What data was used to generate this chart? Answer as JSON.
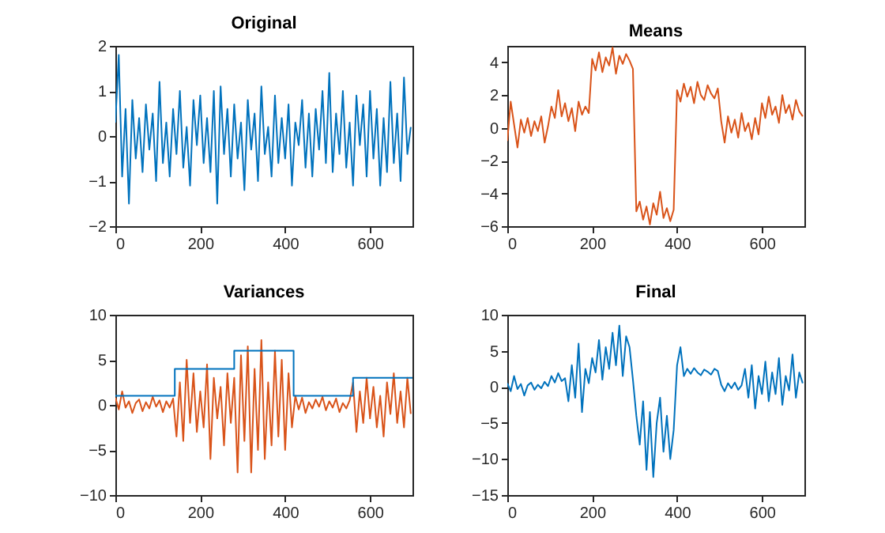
{
  "chart_data": [
    {
      "type": "line",
      "title": "Original",
      "x": [
        0,
        8,
        16,
        24,
        32,
        40,
        48,
        56,
        64,
        72,
        80,
        88,
        96,
        104,
        112,
        120,
        128,
        136,
        144,
        152,
        160,
        168,
        176,
        184,
        192,
        200,
        208,
        216,
        224,
        232,
        240,
        248,
        256,
        264,
        272,
        280,
        288,
        296,
        304,
        312,
        320,
        328,
        336,
        344,
        352,
        360,
        368,
        376,
        384,
        392,
        400,
        408,
        416,
        424,
        432,
        440,
        448,
        456,
        464,
        472,
        480,
        488,
        496,
        504,
        512,
        520,
        528,
        536,
        544,
        552,
        560,
        568,
        576,
        584,
        592,
        600,
        608,
        616,
        624,
        632,
        640,
        648,
        656,
        664,
        672,
        680,
        688,
        696
      ],
      "xlim": [
        0,
        700
      ],
      "xticks": [
        0,
        200,
        400,
        600
      ],
      "ylim": [
        -2,
        2
      ],
      "yticks": [
        -2,
        -1,
        0,
        1,
        2
      ],
      "series": [
        {
          "color": "#0072bd",
          "values": [
            0.3,
            1.8,
            -0.9,
            0.6,
            -1.5,
            0.8,
            -0.5,
            0.4,
            -0.8,
            0.7,
            -0.3,
            0.5,
            -1.0,
            1.2,
            -0.6,
            0.3,
            -0.9,
            0.6,
            -0.4,
            1.0,
            -0.7,
            0.2,
            -1.1,
            0.8,
            -0.2,
            0.9,
            -0.6,
            0.4,
            -0.8,
            1.0,
            -1.5,
            1.1,
            -0.4,
            0.6,
            -0.9,
            0.7,
            -0.5,
            0.3,
            -1.2,
            0.8,
            -0.3,
            0.5,
            -1.0,
            1.1,
            -0.4,
            0.2,
            -0.9,
            0.9,
            -0.6,
            0.4,
            -0.5,
            0.7,
            -1.1,
            0.3,
            -0.2,
            0.8,
            -0.7,
            0.5,
            -0.9,
            0.6,
            -0.3,
            1.0,
            -0.6,
            1.4,
            -0.8,
            0.5,
            -0.4,
            1.0,
            -0.7,
            0.3,
            -1.1,
            0.9,
            -0.2,
            0.7,
            -0.9,
            1.0,
            -0.5,
            0.6,
            -1.1,
            0.4,
            -0.8,
            1.2,
            -0.6,
            0.5,
            -1.0,
            1.3,
            -0.4,
            0.2
          ]
        }
      ]
    },
    {
      "type": "line",
      "title": "Means",
      "x": [
        0,
        8,
        16,
        24,
        32,
        40,
        48,
        56,
        64,
        72,
        80,
        88,
        96,
        104,
        112,
        120,
        128,
        136,
        144,
        152,
        160,
        168,
        176,
        184,
        192,
        200,
        208,
        216,
        224,
        232,
        240,
        248,
        256,
        264,
        272,
        280,
        288,
        296,
        304,
        312,
        320,
        328,
        336,
        344,
        352,
        360,
        368,
        376,
        384,
        392,
        400,
        408,
        416,
        424,
        432,
        440,
        448,
        456,
        464,
        472,
        480,
        488,
        496,
        504,
        512,
        520,
        528,
        536,
        544,
        552,
        560,
        568,
        576,
        584,
        592,
        600,
        608,
        616,
        624,
        632,
        640,
        648,
        656,
        664,
        672,
        680,
        688,
        696
      ],
      "xlim": [
        0,
        700
      ],
      "xticks": [
        0,
        200,
        400,
        600
      ],
      "ylim": [
        -6,
        5
      ],
      "yticks": [
        -6,
        -4,
        -2,
        0,
        2,
        4
      ],
      "series": [
        {
          "color": "#d95319",
          "values": [
            -0.8,
            1.6,
            0.2,
            -1.2,
            0.5,
            -0.3,
            0.6,
            -0.5,
            0.4,
            -0.2,
            0.7,
            -0.9,
            0.1,
            1.3,
            0.6,
            2.3,
            0.7,
            1.5,
            0.4,
            1.2,
            -0.2,
            1.6,
            0.8,
            1.3,
            0.9,
            4.2,
            3.5,
            4.6,
            3.4,
            4.3,
            3.8,
            4.9,
            3.3,
            4.4,
            3.9,
            4.5,
            4.1,
            3.6,
            -5.1,
            -4.5,
            -5.6,
            -4.8,
            -5.9,
            -4.6,
            -5.3,
            -3.9,
            -5.5,
            -4.9,
            -5.7,
            -5.0,
            2.3,
            1.6,
            2.7,
            1.9,
            2.5,
            1.5,
            2.8,
            2.0,
            1.7,
            2.6,
            2.1,
            1.8,
            2.4,
            0.4,
            -0.9,
            0.7,
            -0.3,
            0.5,
            -0.6,
            0.9,
            -0.2,
            0.3,
            -0.7,
            0.6,
            -0.4,
            1.5,
            0.6,
            1.9,
            0.8,
            1.3,
            0.3,
            2.0,
            0.9,
            1.4,
            0.5,
            1.7,
            1.0,
            0.7
          ]
        }
      ]
    },
    {
      "type": "line",
      "title": "Variances",
      "x": [
        0,
        8,
        16,
        24,
        32,
        40,
        48,
        56,
        64,
        72,
        80,
        88,
        96,
        104,
        112,
        120,
        128,
        136,
        144,
        152,
        160,
        168,
        176,
        184,
        192,
        200,
        208,
        216,
        224,
        232,
        240,
        248,
        256,
        264,
        272,
        280,
        288,
        296,
        304,
        312,
        320,
        328,
        336,
        344,
        352,
        360,
        368,
        376,
        384,
        392,
        400,
        408,
        416,
        424,
        432,
        440,
        448,
        456,
        464,
        472,
        480,
        488,
        496,
        504,
        512,
        520,
        528,
        536,
        544,
        552,
        560,
        568,
        576,
        584,
        592,
        600,
        608,
        616,
        624,
        632,
        640,
        648,
        656,
        664,
        672,
        680,
        688,
        696
      ],
      "xlim": [
        0,
        700
      ],
      "xticks": [
        0,
        200,
        400,
        600
      ],
      "ylim": [
        -10,
        10
      ],
      "yticks": [
        -10,
        -5,
        0,
        5,
        10
      ],
      "series": [
        {
          "color": "#d95319",
          "values": [
            0.8,
            -0.5,
            1.5,
            -0.3,
            0.4,
            -0.9,
            0.2,
            0.6,
            -0.7,
            0.3,
            -0.4,
            0.9,
            -0.2,
            0.5,
            -0.8,
            0.4,
            -0.3,
            0.7,
            -3.5,
            2.5,
            -4.0,
            5.0,
            -2.0,
            3.5,
            -3.0,
            1.5,
            -2.5,
            4.5,
            -6.0,
            3.0,
            -1.5,
            2.0,
            -4.5,
            3.5,
            -2.0,
            3.0,
            -7.5,
            5.5,
            -4.0,
            6.5,
            -7.5,
            4.0,
            -5.0,
            7.2,
            -6.0,
            2.5,
            -4.5,
            6.0,
            -3.5,
            5.0,
            -5.0,
            3.5,
            -2.5,
            1.0,
            -0.5,
            0.8,
            -0.9,
            0.3,
            -0.4,
            0.6,
            -0.2,
            0.9,
            -0.6,
            0.4,
            -0.3,
            0.7,
            -0.8,
            0.2,
            -0.4,
            0.5,
            2.5,
            -3.0,
            1.5,
            -2.0,
            3.0,
            -1.5,
            2.0,
            -2.5,
            1.0,
            -3.5,
            2.5,
            -1.0,
            3.5,
            -2.0,
            1.5,
            -2.5,
            3.0,
            -1.0
          ]
        },
        {
          "type": "step",
          "color": "#0072bd",
          "x": [
            0,
            140,
            280,
            420,
            560,
            700
          ],
          "values": [
            1,
            4,
            6,
            1,
            3,
            3
          ]
        }
      ]
    },
    {
      "type": "line",
      "title": "Final",
      "x": [
        0,
        8,
        16,
        24,
        32,
        40,
        48,
        56,
        64,
        72,
        80,
        88,
        96,
        104,
        112,
        120,
        128,
        136,
        144,
        152,
        160,
        168,
        176,
        184,
        192,
        200,
        208,
        216,
        224,
        232,
        240,
        248,
        256,
        264,
        272,
        280,
        288,
        296,
        304,
        312,
        320,
        328,
        336,
        344,
        352,
        360,
        368,
        376,
        384,
        392,
        400,
        408,
        416,
        424,
        432,
        440,
        448,
        456,
        464,
        472,
        480,
        488,
        496,
        504,
        512,
        520,
        528,
        536,
        544,
        552,
        560,
        568,
        576,
        584,
        592,
        600,
        608,
        616,
        624,
        632,
        640,
        648,
        656,
        664,
        672,
        680,
        688,
        696
      ],
      "xlim": [
        0,
        700
      ],
      "xticks": [
        0,
        200,
        400,
        600
      ],
      "ylim": [
        -15,
        10
      ],
      "yticks": [
        -15,
        -10,
        -5,
        0,
        5,
        10
      ],
      "series": [
        {
          "color": "#0072bd",
          "values": [
            0.5,
            -0.6,
            1.5,
            -0.3,
            0.4,
            -1.2,
            0.2,
            0.6,
            -0.4,
            0.3,
            -0.2,
            0.7,
            0.1,
            1.5,
            0.6,
            1.9,
            0.8,
            1.2,
            -2.0,
            3.0,
            -1.5,
            6.0,
            -3.5,
            2.5,
            0.5,
            4.0,
            2.0,
            6.5,
            1.0,
            5.5,
            2.5,
            7.5,
            3.0,
            8.5,
            1.5,
            7.0,
            5.5,
            1.0,
            -4.0,
            -8.0,
            -2.0,
            -11.5,
            -3.5,
            -12.5,
            -5.0,
            -1.5,
            -9.0,
            -4.0,
            -10.0,
            -6.0,
            3.0,
            5.5,
            1.5,
            2.5,
            1.8,
            2.6,
            2.0,
            1.6,
            2.4,
            2.1,
            1.7,
            2.5,
            2.2,
            0.3,
            -0.6,
            0.5,
            -0.2,
            0.6,
            -0.4,
            0.2,
            2.5,
            -1.5,
            3.0,
            -3.0,
            1.5,
            -1.0,
            3.5,
            -2.0,
            2.0,
            -1.0,
            4.0,
            -2.5,
            1.5,
            -0.5,
            4.5,
            -1.5,
            2.0,
            0.5
          ]
        }
      ]
    }
  ]
}
